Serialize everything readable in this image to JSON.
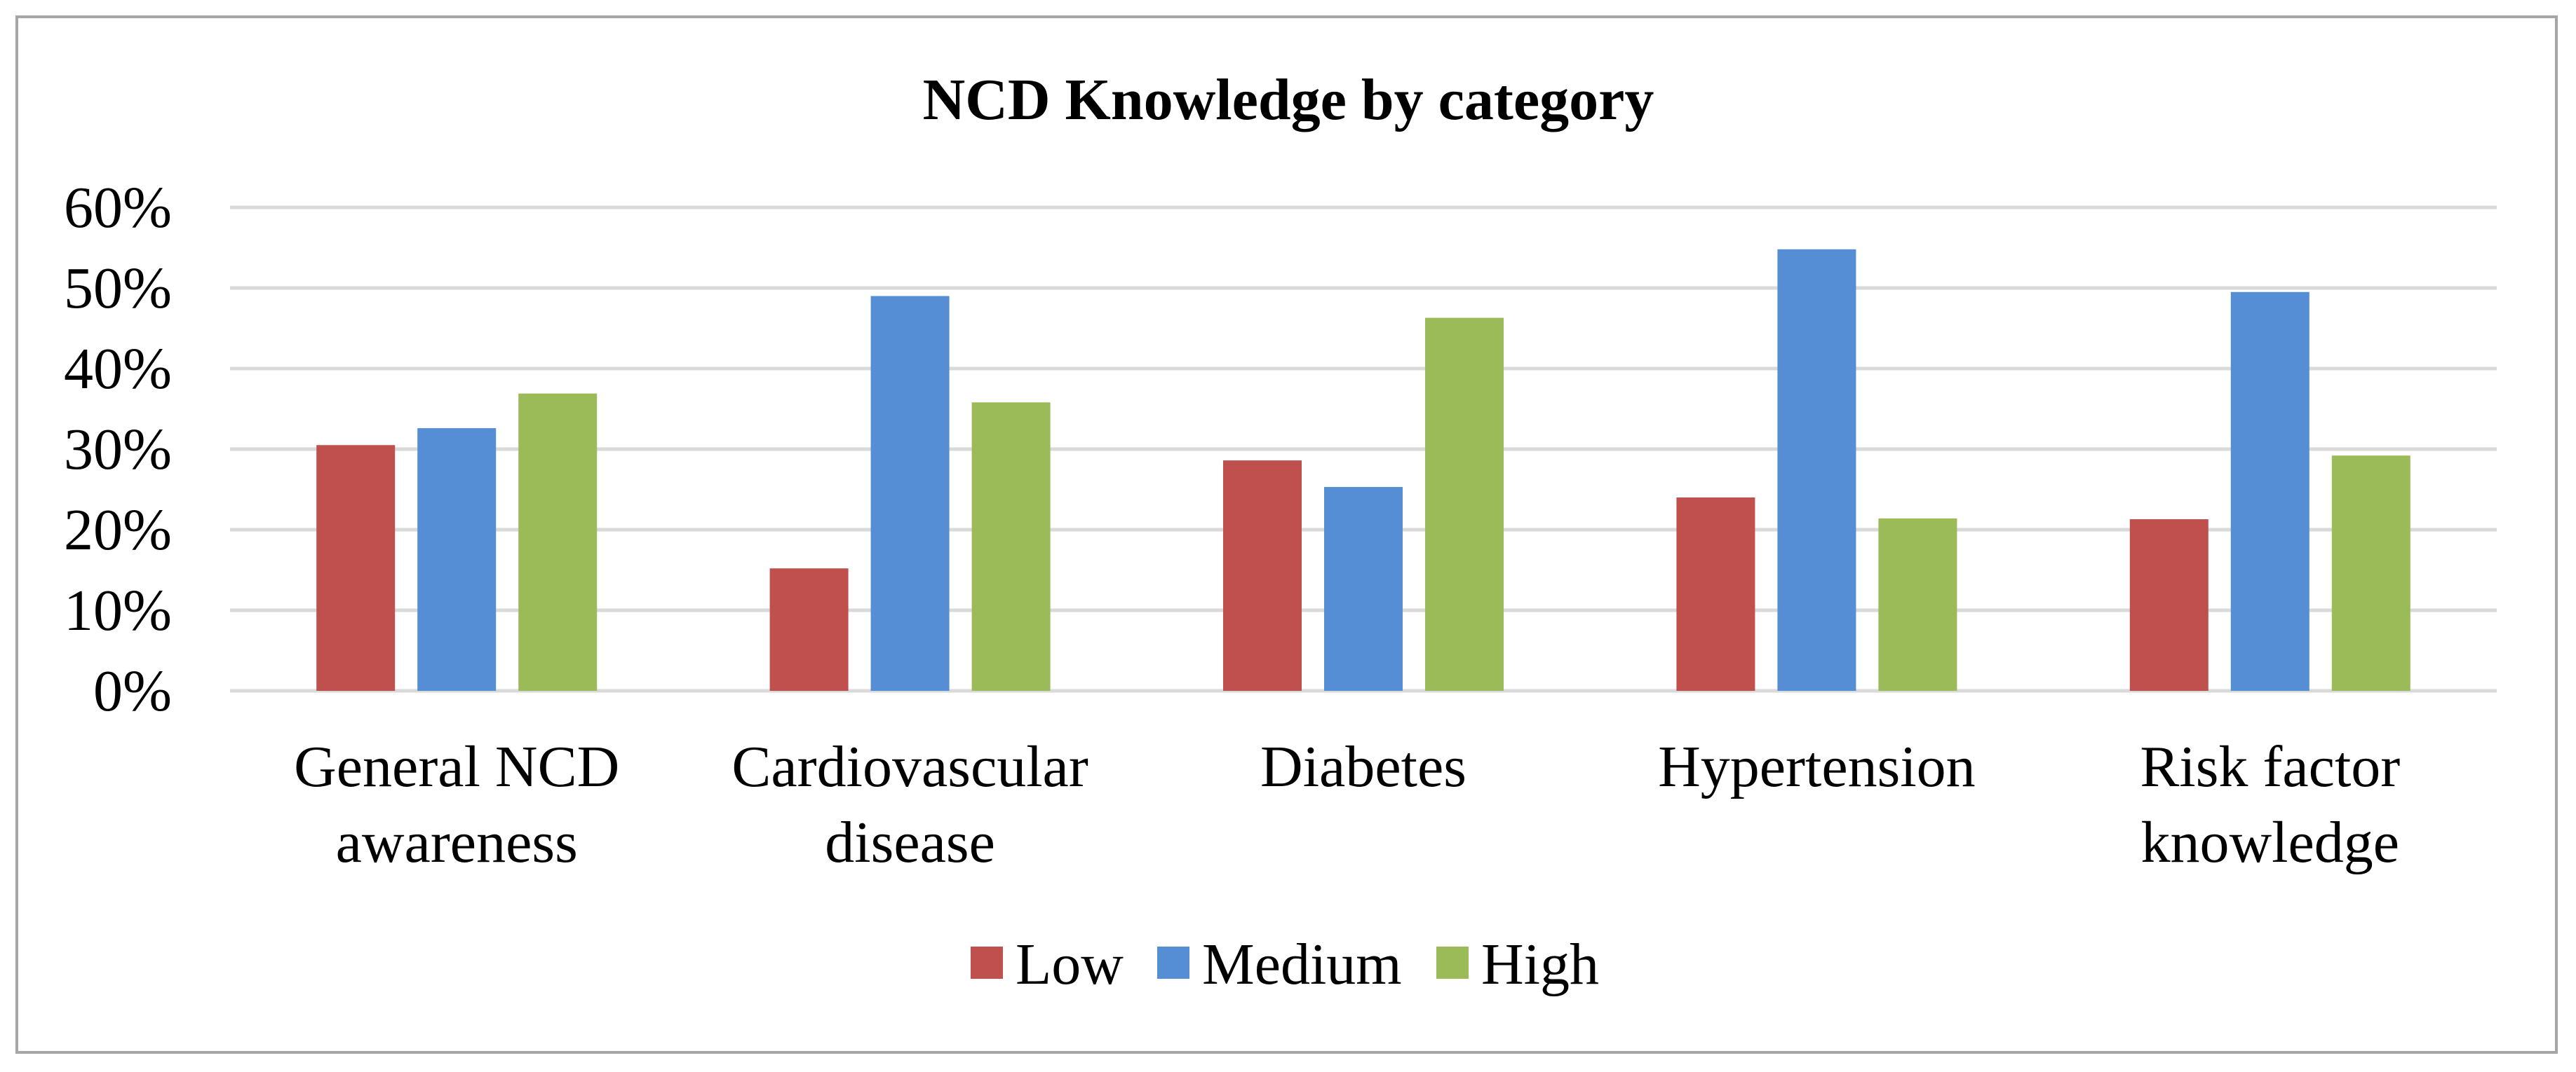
{
  "chart_data": {
    "type": "bar",
    "title": "NCD Knowledge by category",
    "xlabel": "",
    "ylabel": "",
    "ylim": [
      0,
      60
    ],
    "yticks": [
      "0%",
      "10%",
      "20%",
      "30%",
      "40%",
      "50%",
      "60%"
    ],
    "grid": true,
    "legend_position": "bottom",
    "categories": [
      [
        "General NCD",
        "awareness"
      ],
      [
        "Cardiovascular",
        "disease"
      ],
      [
        "Diabetes"
      ],
      [
        "Hypertension"
      ],
      [
        "Risk factor",
        "knowledge"
      ]
    ],
    "series": [
      {
        "name": "Low",
        "color": "#c0504d",
        "values": [
          30.5,
          15.2,
          28.6,
          24.0,
          21.3
        ]
      },
      {
        "name": "Medium",
        "color": "#558ed5",
        "values": [
          32.6,
          49.0,
          25.3,
          54.8,
          49.5
        ]
      },
      {
        "name": "High",
        "color": "#9bbb59",
        "values": [
          36.9,
          35.8,
          46.3,
          21.4,
          29.2
        ]
      }
    ]
  }
}
